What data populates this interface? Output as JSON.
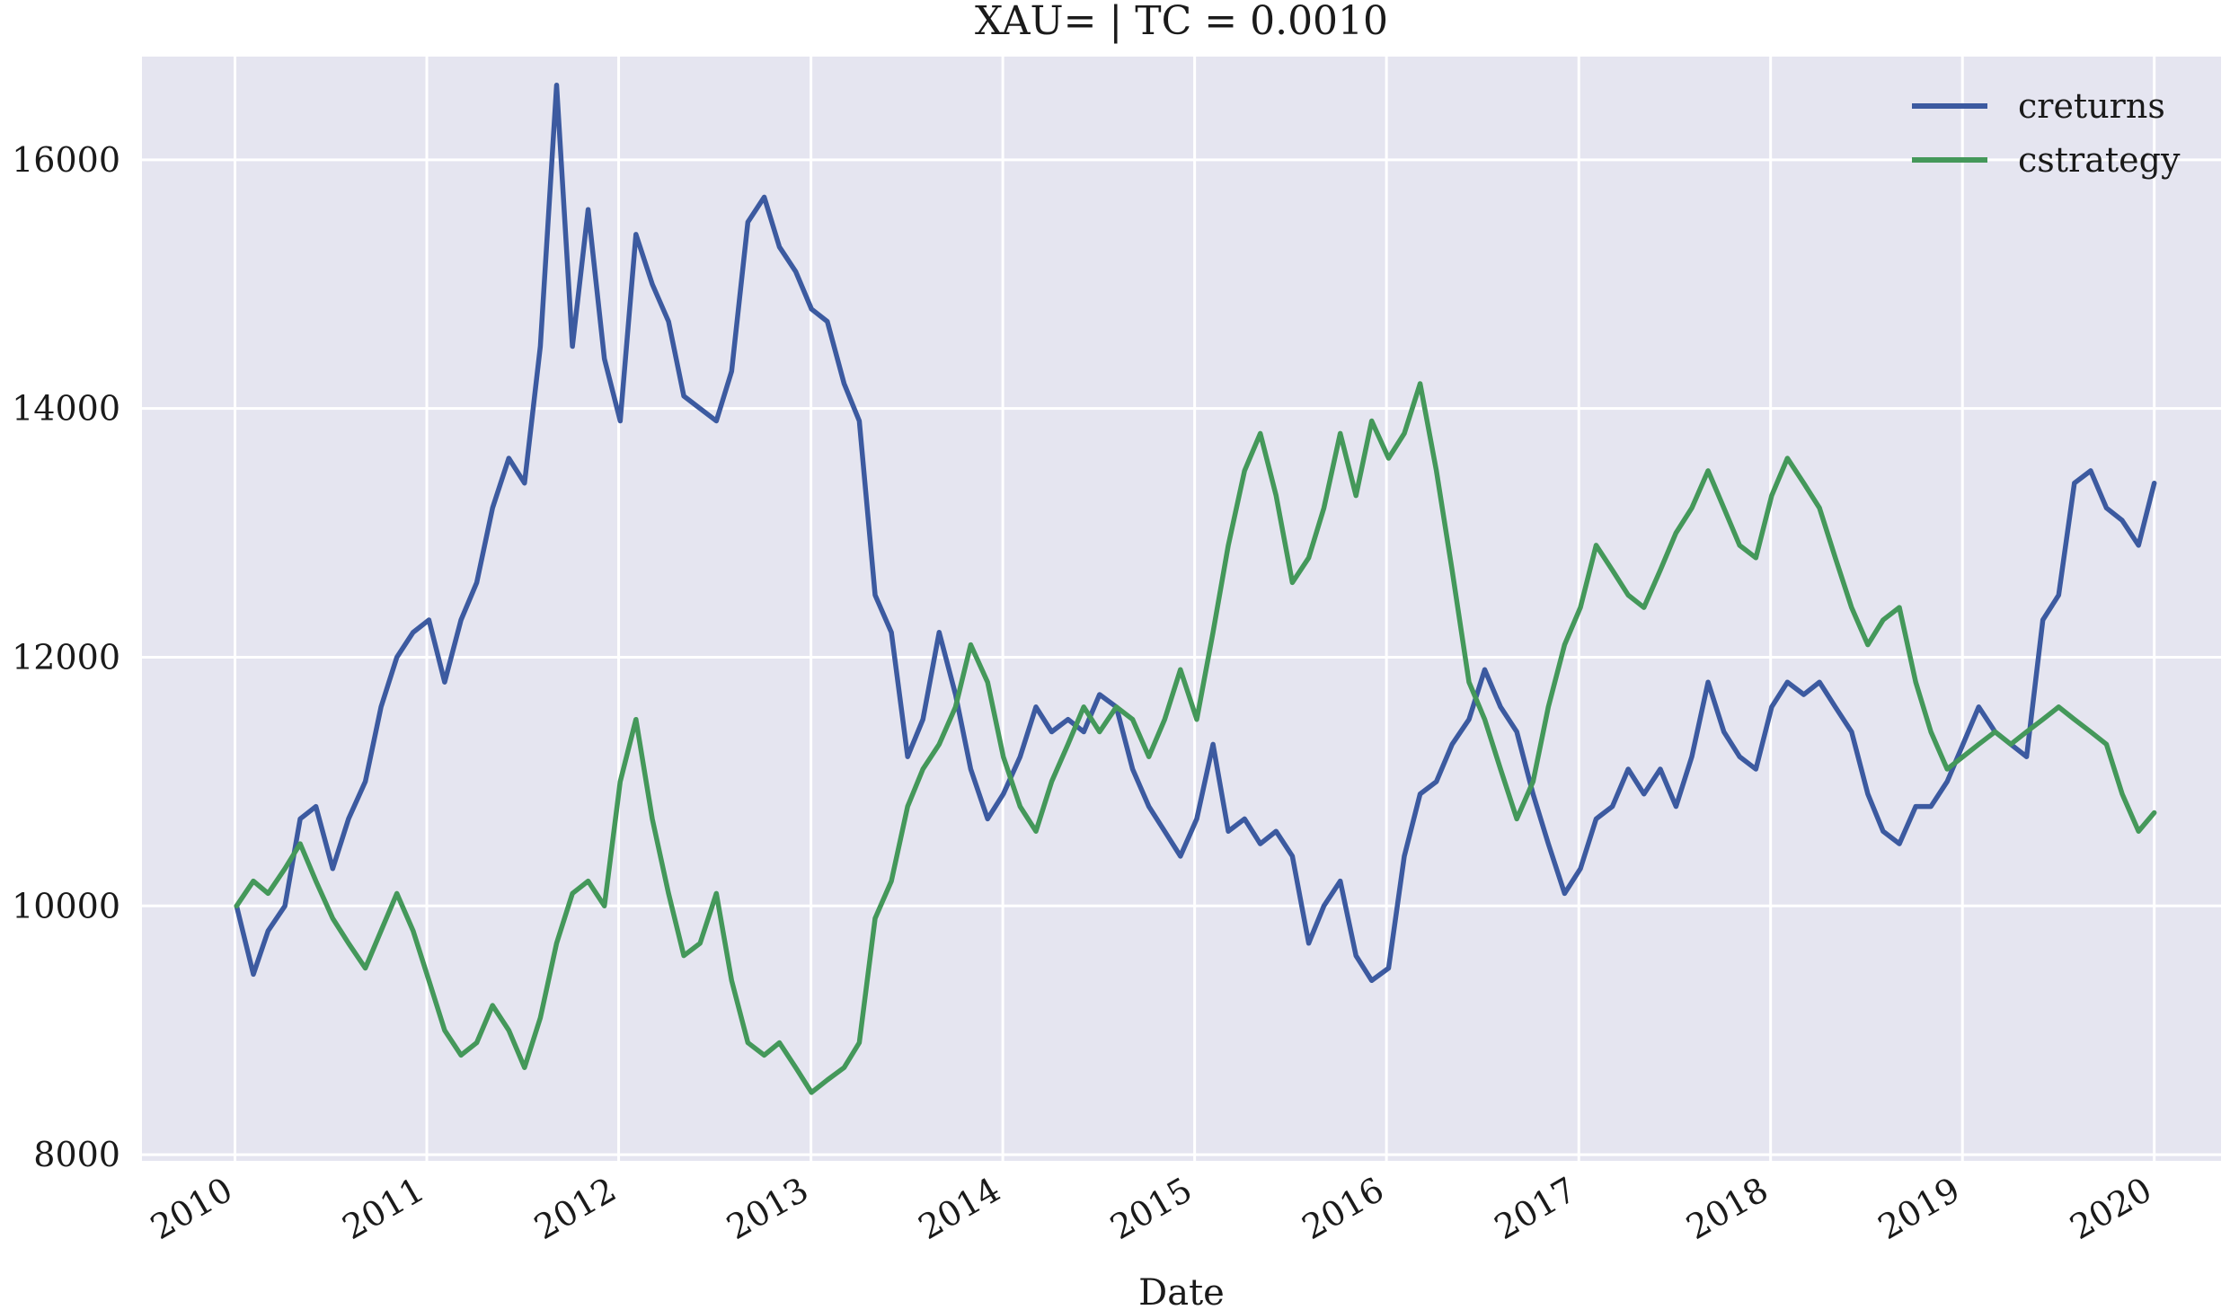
{
  "chart_data": {
    "type": "line",
    "title": "XAU= | TC = 0.0010",
    "xlabel": "Date",
    "ylabel": "",
    "x_ticks": [
      "2010",
      "2011",
      "2012",
      "2013",
      "2014",
      "2015",
      "2016",
      "2017",
      "2018",
      "2019",
      "2020"
    ],
    "y_ticks": [
      8000,
      10000,
      12000,
      14000,
      16000
    ],
    "xlim": [
      "2009-07-08",
      "2020-05-07"
    ],
    "ylim": [
      7950,
      16830
    ],
    "grid": true,
    "background": "#e5e5f0",
    "legend_position": "top-right",
    "series": [
      {
        "name": "creturns",
        "color": "#3c5aa0",
        "points": [
          [
            "2010-01-04",
            10000
          ],
          [
            "2010-02-05",
            9450
          ],
          [
            "2010-03-05",
            9800
          ],
          [
            "2010-04-06",
            10000
          ],
          [
            "2010-05-05",
            10700
          ],
          [
            "2010-06-04",
            10800
          ],
          [
            "2010-07-06",
            10300
          ],
          [
            "2010-08-05",
            10700
          ],
          [
            "2010-09-06",
            11000
          ],
          [
            "2010-10-06",
            11600
          ],
          [
            "2010-11-05",
            12000
          ],
          [
            "2010-12-06",
            12200
          ],
          [
            "2011-01-05",
            12300
          ],
          [
            "2011-02-04",
            11800
          ],
          [
            "2011-03-07",
            12300
          ],
          [
            "2011-04-06",
            12600
          ],
          [
            "2011-05-06",
            13200
          ],
          [
            "2011-06-06",
            13600
          ],
          [
            "2011-07-06",
            13400
          ],
          [
            "2011-08-05",
            14500
          ],
          [
            "2011-09-05",
            16600
          ],
          [
            "2011-10-05",
            14500
          ],
          [
            "2011-11-04",
            15600
          ],
          [
            "2011-12-05",
            14400
          ],
          [
            "2012-01-04",
            13900
          ],
          [
            "2012-02-03",
            15400
          ],
          [
            "2012-03-05",
            15000
          ],
          [
            "2012-04-05",
            14700
          ],
          [
            "2012-05-04",
            14100
          ],
          [
            "2012-06-04",
            14000
          ],
          [
            "2012-07-05",
            13900
          ],
          [
            "2012-08-03",
            14300
          ],
          [
            "2012-09-03",
            15500
          ],
          [
            "2012-10-04",
            15700
          ],
          [
            "2012-11-02",
            15300
          ],
          [
            "2012-12-03",
            15100
          ],
          [
            "2013-01-02",
            14800
          ],
          [
            "2013-02-01",
            14700
          ],
          [
            "2013-03-05",
            14200
          ],
          [
            "2013-04-03",
            13900
          ],
          [
            "2013-05-03",
            12500
          ],
          [
            "2013-06-03",
            12200
          ],
          [
            "2013-07-04",
            11200
          ],
          [
            "2013-08-02",
            11500
          ],
          [
            "2013-09-02",
            12200
          ],
          [
            "2013-10-03",
            11700
          ],
          [
            "2013-11-01",
            11100
          ],
          [
            "2013-12-03",
            10700
          ],
          [
            "2014-01-02",
            10900
          ],
          [
            "2014-02-03",
            11200
          ],
          [
            "2014-03-05",
            11600
          ],
          [
            "2014-04-04",
            11400
          ],
          [
            "2014-05-05",
            11500
          ],
          [
            "2014-06-04",
            11400
          ],
          [
            "2014-07-04",
            11700
          ],
          [
            "2014-08-05",
            11600
          ],
          [
            "2014-09-05",
            11100
          ],
          [
            "2014-10-06",
            10800
          ],
          [
            "2014-11-05",
            10600
          ],
          [
            "2014-12-05",
            10400
          ],
          [
            "2015-01-05",
            10700
          ],
          [
            "2015-02-05",
            11300
          ],
          [
            "2015-03-06",
            10600
          ],
          [
            "2015-04-06",
            10700
          ],
          [
            "2015-05-06",
            10500
          ],
          [
            "2015-06-05",
            10600
          ],
          [
            "2015-07-06",
            10400
          ],
          [
            "2015-08-06",
            9700
          ],
          [
            "2015-09-04",
            10000
          ],
          [
            "2015-10-05",
            10200
          ],
          [
            "2015-11-04",
            9600
          ],
          [
            "2015-12-04",
            9400
          ],
          [
            "2016-01-05",
            9500
          ],
          [
            "2016-02-04",
            10400
          ],
          [
            "2016-03-05",
            10900
          ],
          [
            "2016-04-05",
            11000
          ],
          [
            "2016-05-05",
            11300
          ],
          [
            "2016-06-06",
            11500
          ],
          [
            "2016-07-06",
            11900
          ],
          [
            "2016-08-05",
            11600
          ],
          [
            "2016-09-05",
            11400
          ],
          [
            "2016-10-06",
            10900
          ],
          [
            "2016-11-04",
            10500
          ],
          [
            "2016-12-05",
            10100
          ],
          [
            "2017-01-04",
            10300
          ],
          [
            "2017-02-03",
            10700
          ],
          [
            "2017-03-06",
            10800
          ],
          [
            "2017-04-05",
            11100
          ],
          [
            "2017-05-05",
            10900
          ],
          [
            "2017-06-05",
            11100
          ],
          [
            "2017-07-05",
            10800
          ],
          [
            "2017-08-04",
            11200
          ],
          [
            "2017-09-04",
            11800
          ],
          [
            "2017-10-04",
            11400
          ],
          [
            "2017-11-03",
            11200
          ],
          [
            "2017-12-04",
            11100
          ],
          [
            "2018-01-03",
            11600
          ],
          [
            "2018-02-02",
            11800
          ],
          [
            "2018-03-05",
            11700
          ],
          [
            "2018-04-04",
            11800
          ],
          [
            "2018-05-04",
            11600
          ],
          [
            "2018-06-04",
            11400
          ],
          [
            "2018-07-05",
            10900
          ],
          [
            "2018-08-03",
            10600
          ],
          [
            "2018-09-03",
            10500
          ],
          [
            "2018-10-04",
            10800
          ],
          [
            "2018-11-02",
            10800
          ],
          [
            "2018-12-03",
            11000
          ],
          [
            "2019-01-02",
            11300
          ],
          [
            "2019-02-01",
            11600
          ],
          [
            "2019-03-04",
            11400
          ],
          [
            "2019-04-03",
            11300
          ],
          [
            "2019-05-03",
            11200
          ],
          [
            "2019-06-03",
            12300
          ],
          [
            "2019-07-03",
            12500
          ],
          [
            "2019-08-02",
            13400
          ],
          [
            "2019-09-02",
            13500
          ],
          [
            "2019-10-02",
            13200
          ],
          [
            "2019-11-01",
            13100
          ],
          [
            "2019-12-02",
            12900
          ],
          [
            "2020-01-01",
            13400
          ]
        ]
      },
      {
        "name": "cstrategy",
        "color": "#44985a",
        "points": [
          [
            "2010-01-04",
            10000
          ],
          [
            "2010-02-05",
            10200
          ],
          [
            "2010-03-05",
            10100
          ],
          [
            "2010-04-06",
            10300
          ],
          [
            "2010-05-05",
            10500
          ],
          [
            "2010-06-04",
            10200
          ],
          [
            "2010-07-06",
            9900
          ],
          [
            "2010-08-05",
            9700
          ],
          [
            "2010-09-06",
            9500
          ],
          [
            "2010-10-06",
            9800
          ],
          [
            "2010-11-05",
            10100
          ],
          [
            "2010-12-06",
            9800
          ],
          [
            "2011-01-05",
            9400
          ],
          [
            "2011-02-04",
            9000
          ],
          [
            "2011-03-07",
            8800
          ],
          [
            "2011-04-06",
            8900
          ],
          [
            "2011-05-06",
            9200
          ],
          [
            "2011-06-06",
            9000
          ],
          [
            "2011-07-06",
            8700
          ],
          [
            "2011-08-05",
            9100
          ],
          [
            "2011-09-05",
            9700
          ],
          [
            "2011-10-05",
            10100
          ],
          [
            "2011-11-04",
            10200
          ],
          [
            "2011-12-05",
            10000
          ],
          [
            "2012-01-04",
            11000
          ],
          [
            "2012-02-03",
            11500
          ],
          [
            "2012-03-05",
            10700
          ],
          [
            "2012-04-05",
            10100
          ],
          [
            "2012-05-04",
            9600
          ],
          [
            "2012-06-04",
            9700
          ],
          [
            "2012-07-05",
            10100
          ],
          [
            "2012-08-03",
            9400
          ],
          [
            "2012-09-03",
            8900
          ],
          [
            "2012-10-04",
            8800
          ],
          [
            "2012-11-02",
            8900
          ],
          [
            "2012-12-03",
            8700
          ],
          [
            "2013-01-02",
            8500
          ],
          [
            "2013-02-01",
            8600
          ],
          [
            "2013-03-05",
            8700
          ],
          [
            "2013-04-03",
            8900
          ],
          [
            "2013-05-03",
            9900
          ],
          [
            "2013-06-03",
            10200
          ],
          [
            "2013-07-04",
            10800
          ],
          [
            "2013-08-02",
            11100
          ],
          [
            "2013-09-02",
            11300
          ],
          [
            "2013-10-03",
            11600
          ],
          [
            "2013-11-01",
            12100
          ],
          [
            "2013-12-03",
            11800
          ],
          [
            "2014-01-02",
            11200
          ],
          [
            "2014-02-03",
            10800
          ],
          [
            "2014-03-05",
            10600
          ],
          [
            "2014-04-04",
            11000
          ],
          [
            "2014-05-05",
            11300
          ],
          [
            "2014-06-04",
            11600
          ],
          [
            "2014-07-04",
            11400
          ],
          [
            "2014-08-05",
            11600
          ],
          [
            "2014-09-05",
            11500
          ],
          [
            "2014-10-06",
            11200
          ],
          [
            "2014-11-05",
            11500
          ],
          [
            "2014-12-05",
            11900
          ],
          [
            "2015-01-05",
            11500
          ],
          [
            "2015-02-05",
            12200
          ],
          [
            "2015-03-06",
            12900
          ],
          [
            "2015-04-06",
            13500
          ],
          [
            "2015-05-06",
            13800
          ],
          [
            "2015-06-05",
            13300
          ],
          [
            "2015-07-06",
            12600
          ],
          [
            "2015-08-06",
            12800
          ],
          [
            "2015-09-04",
            13200
          ],
          [
            "2015-10-05",
            13800
          ],
          [
            "2015-11-04",
            13300
          ],
          [
            "2015-12-04",
            13900
          ],
          [
            "2016-01-05",
            13600
          ],
          [
            "2016-02-04",
            13800
          ],
          [
            "2016-03-05",
            14200
          ],
          [
            "2016-04-05",
            13500
          ],
          [
            "2016-05-05",
            12700
          ],
          [
            "2016-06-06",
            11800
          ],
          [
            "2016-07-06",
            11500
          ],
          [
            "2016-08-05",
            11100
          ],
          [
            "2016-09-05",
            10700
          ],
          [
            "2016-10-06",
            11000
          ],
          [
            "2016-11-04",
            11600
          ],
          [
            "2016-12-05",
            12100
          ],
          [
            "2017-01-04",
            12400
          ],
          [
            "2017-02-03",
            12900
          ],
          [
            "2017-03-06",
            12700
          ],
          [
            "2017-04-05",
            12500
          ],
          [
            "2017-05-05",
            12400
          ],
          [
            "2017-06-05",
            12700
          ],
          [
            "2017-07-05",
            13000
          ],
          [
            "2017-08-04",
            13200
          ],
          [
            "2017-09-04",
            13500
          ],
          [
            "2017-10-04",
            13200
          ],
          [
            "2017-11-03",
            12900
          ],
          [
            "2017-12-04",
            12800
          ],
          [
            "2018-01-03",
            13300
          ],
          [
            "2018-02-02",
            13600
          ],
          [
            "2018-03-05",
            13400
          ],
          [
            "2018-04-04",
            13200
          ],
          [
            "2018-05-04",
            12800
          ],
          [
            "2018-06-04",
            12400
          ],
          [
            "2018-07-05",
            12100
          ],
          [
            "2018-08-03",
            12300
          ],
          [
            "2018-09-03",
            12400
          ],
          [
            "2018-10-04",
            11800
          ],
          [
            "2018-11-02",
            11400
          ],
          [
            "2018-12-03",
            11100
          ],
          [
            "2019-01-02",
            11200
          ],
          [
            "2019-02-01",
            11300
          ],
          [
            "2019-03-04",
            11400
          ],
          [
            "2019-04-03",
            11300
          ],
          [
            "2019-05-03",
            11400
          ],
          [
            "2019-06-03",
            11500
          ],
          [
            "2019-07-03",
            11600
          ],
          [
            "2019-08-02",
            11500
          ],
          [
            "2019-09-02",
            11400
          ],
          [
            "2019-10-02",
            11300
          ],
          [
            "2019-11-01",
            10900
          ],
          [
            "2019-12-02",
            10600
          ],
          [
            "2020-01-01",
            10750
          ]
        ]
      }
    ]
  }
}
